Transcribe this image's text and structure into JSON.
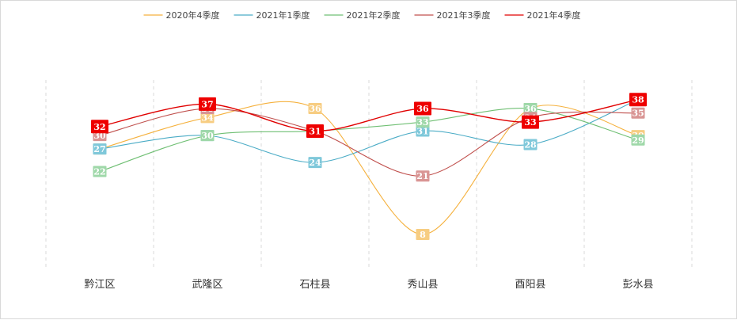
{
  "chart_data": {
    "type": "line",
    "title": "",
    "xlabel": "",
    "ylabel": "",
    "categories": [
      "黔江区",
      "武隆区",
      "石柱县",
      "秀山县",
      "酉阳县",
      "彭水县"
    ],
    "ylim": [
      0,
      42
    ],
    "grid": "vertical-dashed",
    "legend_position": "top-center",
    "smooth": true,
    "series": [
      {
        "name": "2020年4季度",
        "color": "#f5b13d",
        "label_bg": "#f7cd82",
        "values": [
          27,
          34,
          36,
          8,
          36,
          30
        ]
      },
      {
        "name": "2021年1季度",
        "color": "#4bacc6",
        "label_bg": "#7fc8da",
        "values": [
          27,
          30,
          24,
          31,
          28,
          38
        ]
      },
      {
        "name": "2021年2季度",
        "color": "#6fbf73",
        "label_bg": "#9fd8a9",
        "values": [
          22,
          30,
          31,
          33,
          36,
          29
        ]
      },
      {
        "name": "2021年3季度",
        "color": "#c0504d",
        "label_bg": "#d99594",
        "values": [
          30,
          36,
          31,
          21,
          34,
          35
        ]
      },
      {
        "name": "2021年4季度",
        "color": "#e00000",
        "label_bg": "#ee0000",
        "values": [
          32,
          37,
          31,
          36,
          33,
          38
        ]
      }
    ]
  }
}
